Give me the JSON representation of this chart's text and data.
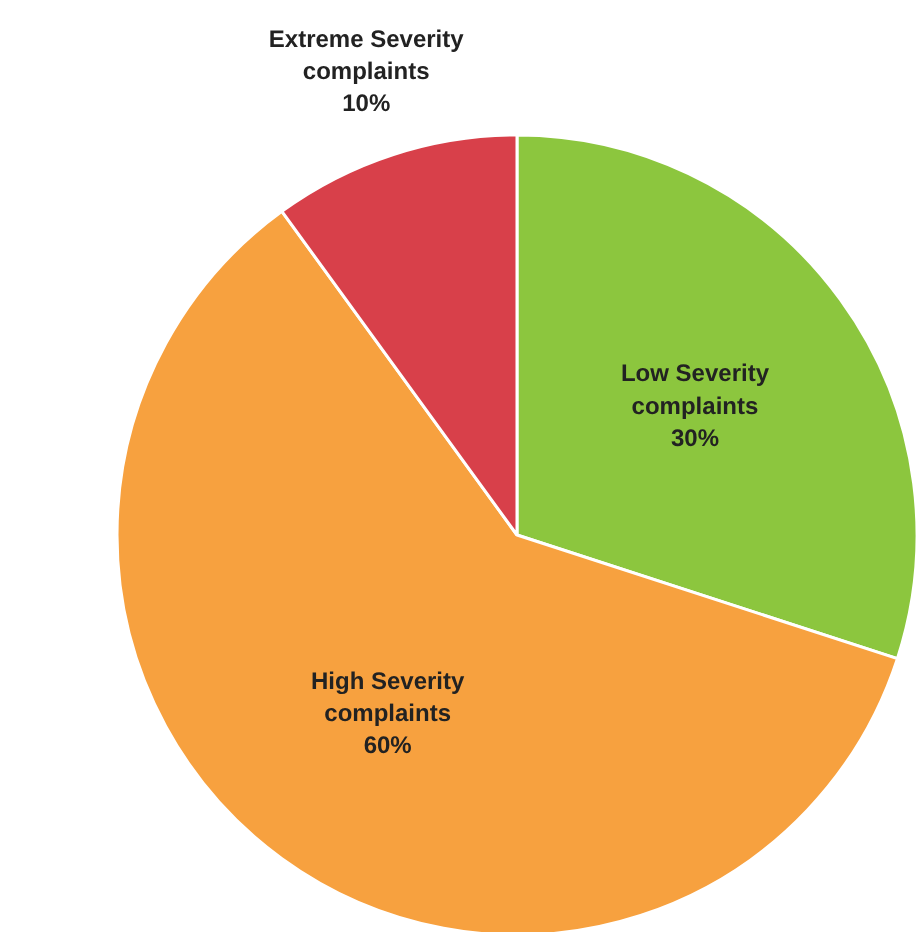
{
  "chart_data": {
    "type": "pie",
    "categories": [
      "Low Severity complaints",
      "High Severity complaints",
      "Extreme Severity complaints"
    ],
    "values": [
      30,
      60,
      10
    ],
    "colors": [
      "#8cc63e",
      "#f7a13f",
      "#d8404a"
    ],
    "value_labels": [
      "30%",
      "60%",
      "10%"
    ]
  }
}
